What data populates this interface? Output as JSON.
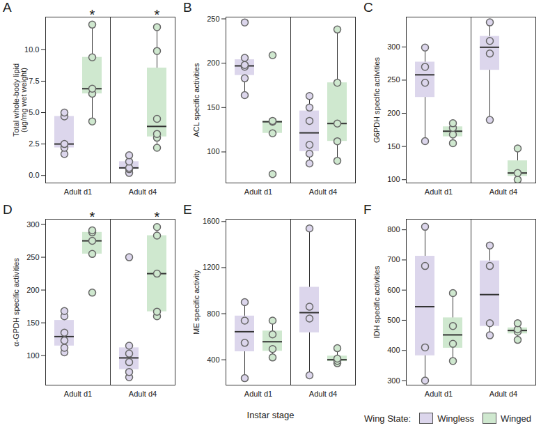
{
  "chart_data": [
    {
      "type": "box",
      "title": "A",
      "ylabel": "Total whole-body lipid\n(ug/mg wet weight)",
      "categories": [
        "Adult d1",
        "Adult d4"
      ],
      "series": [
        {
          "name": "Wingless",
          "color": "#dcd6ec",
          "values": [
            [
              1.7,
              2.2,
              2.5,
              4.7,
              5.0
            ],
            [
              0.2,
              0.5,
              0.6,
              1.1,
              1.6
            ]
          ]
        },
        {
          "name": "Winged",
          "color": "#cfe8cf",
          "values": [
            [
              4.3,
              6.5,
              6.9,
              9.4,
              12.0
            ],
            [
              2.2,
              3.0,
              3.3,
              4.5,
              9.9,
              11.8
            ]
          ]
        }
      ],
      "ylim": [
        -0.6,
        12.6
      ],
      "yticks": [
        {
          "value": 0,
          "label": "0.0"
        },
        {
          "value": 2.5,
          "label": "2.5"
        },
        {
          "value": 5,
          "label": "5.0"
        },
        {
          "value": 7.5,
          "label": "7.5"
        },
        {
          "value": 10,
          "label": "10.0"
        }
      ],
      "annotations": [
        {
          "category": "Adult d1",
          "series": "Winged",
          "text": "*"
        },
        {
          "category": "Adult d4",
          "series": "Winged",
          "text": "*"
        }
      ]
    },
    {
      "type": "box",
      "title": "B",
      "ylabel": "ACL specific activities",
      "categories": [
        "Adult d1",
        "Adult d4"
      ],
      "series": [
        {
          "name": "Wingless",
          "color": "#dcd6ec",
          "values": [
            [
              164,
              183,
              196,
              198,
              206,
              246
            ],
            [
              87,
              98,
              108,
              135,
              150,
              163
            ]
          ]
        },
        {
          "name": "Winged",
          "color": "#cfe8cf",
          "values": [
            [
              75,
              121,
              134,
              135,
              209
            ],
            [
              90,
              112,
              132,
              178,
              238
            ]
          ]
        }
      ],
      "ylim": [
        65,
        252
      ],
      "yticks": [
        100,
        150,
        200,
        250
      ]
    },
    {
      "type": "box",
      "title": "C",
      "ylabel": "G6PDH specific activities",
      "categories": [
        "Adult d1",
        "Adult d4"
      ],
      "series": [
        {
          "name": "Wingless",
          "color": "#dcd6ec",
          "values": [
            [
              158,
              246,
              270,
              299
            ],
            [
              190,
              290,
              309,
              337
            ]
          ]
        },
        {
          "name": "Winged",
          "color": "#cfe8cf",
          "values": [
            [
              155,
              168,
              178,
              185
            ],
            [
              100,
              110,
              147
            ]
          ]
        }
      ],
      "ylim": [
        95,
        345
      ],
      "yticks": [
        100,
        150,
        200,
        250,
        300
      ]
    },
    {
      "type": "box",
      "title": "D",
      "ylabel": "α-GPDH specific activities",
      "categories": [
        "Adult d1",
        "Adult d4"
      ],
      "series": [
        {
          "name": "Wingless",
          "color": "#dcd6ec",
          "values": [
            [
              105,
              112,
              123,
              135,
              160,
              168
            ],
            [
              67,
              75,
              90,
              103,
              115,
              250
            ]
          ]
        },
        {
          "name": "Winged",
          "color": "#cfe8cf",
          "values": [
            [
              196,
              255,
              275,
              288,
              291
            ],
            [
              160,
              167,
              225,
              283,
              296
            ]
          ]
        }
      ],
      "ylim": [
        55,
        308
      ],
      "yticks": [
        100,
        150,
        200,
        250,
        300
      ],
      "annotations": [
        {
          "category": "Adult d1",
          "series": "Winged",
          "text": "*"
        },
        {
          "category": "Adult d4",
          "series": "Winged",
          "text": "*"
        }
      ]
    },
    {
      "type": "box",
      "title": "E",
      "ylabel": "ME specific activity",
      "categories": [
        "Adult d1",
        "Adult d4"
      ],
      "series": [
        {
          "name": "Wingless",
          "color": "#dcd6ec",
          "values": [
            [
              240,
              547,
              740,
              900
            ],
            [
              265,
              758,
              860,
              1540
            ]
          ]
        },
        {
          "name": "Winged",
          "color": "#cfe8cf",
          "values": [
            [
              420,
              493,
              620,
              740
            ],
            [
              370,
              390,
              410,
              500
            ]
          ]
        }
      ],
      "ylim": [
        180,
        1620
      ],
      "yticks": [
        400,
        800,
        1200,
        1600
      ]
    },
    {
      "type": "box",
      "title": "F",
      "ylabel": "IDH specific activities",
      "categories": [
        "Adult d1",
        "Adult d4"
      ],
      "series": [
        {
          "name": "Wingless",
          "color": "#dcd6ec",
          "values": [
            [
              300,
              410,
              680,
              810
            ],
            [
              450,
              490,
              680,
              748
            ]
          ]
        },
        {
          "name": "Winged",
          "color": "#cfe8cf",
          "values": [
            [
              365,
              422,
              481,
              590
            ],
            [
              435,
              462,
              470,
              490
            ]
          ]
        }
      ],
      "ylim": [
        285,
        835
      ],
      "yticks": [
        300,
        400,
        500,
        600,
        700,
        800
      ]
    }
  ],
  "xlabel": "Instar stage",
  "legend_title": "Wing State:",
  "legend": "bottom right"
}
